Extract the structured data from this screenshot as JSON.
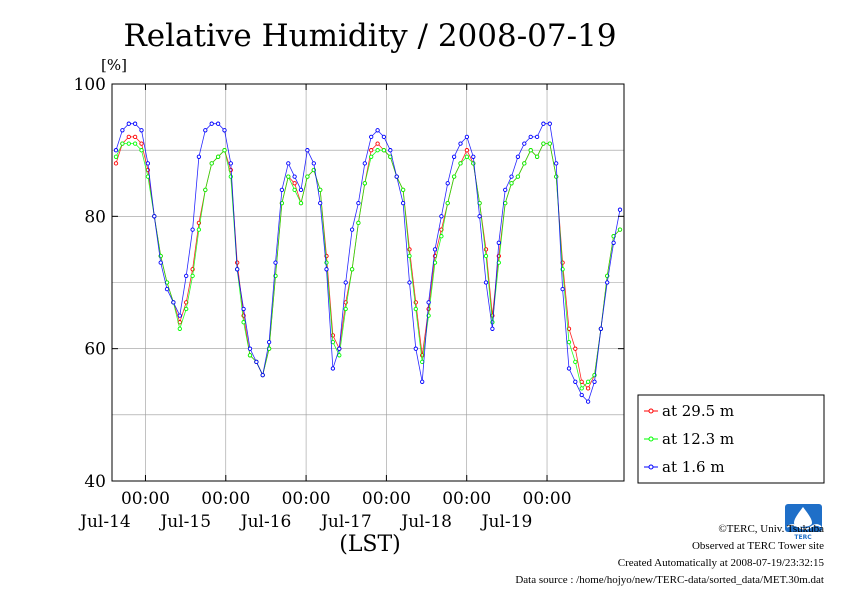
{
  "chart_data": {
    "type": "line",
    "title": "Relative Humidity / 2008-07-19",
    "ylabel": "[%]",
    "xlabel": "(LST)",
    "ylim": [
      40,
      100
    ],
    "yticks": [
      "40",
      "60",
      "80",
      "100"
    ],
    "xlim": [
      "2008-07-13 14:00",
      "2008-07-19 23:00"
    ],
    "xticks": [
      {
        "time": "00:00",
        "date": "Jul-14"
      },
      {
        "time": "00:00",
        "date": "Jul-15"
      },
      {
        "time": "00:00",
        "date": "Jul-16"
      },
      {
        "time": "00:00",
        "date": "Jul-17"
      },
      {
        "time": "00:00",
        "date": "Jul-18"
      },
      {
        "time": "00:00",
        "date": "Jul-19"
      }
    ],
    "grid": true,
    "legend_position": "right",
    "series": [
      {
        "name": "at 29.5 m",
        "color": "#ff0000",
        "values": [
          88,
          91,
          92,
          92,
          91,
          87,
          80,
          74,
          70,
          67,
          64,
          67,
          72,
          79,
          84,
          88,
          89,
          90,
          87,
          73,
          65,
          59,
          58,
          56,
          60,
          71,
          82,
          86,
          85,
          82,
          86,
          87,
          84,
          74,
          62,
          60,
          67,
          72,
          79,
          85,
          90,
          91,
          90,
          89,
          86,
          84,
          75,
          67,
          59,
          66,
          74,
          78,
          82,
          86,
          88,
          90,
          88,
          82,
          75,
          65,
          74,
          82,
          85,
          86,
          88,
          90,
          89,
          91,
          91,
          86,
          73,
          63,
          60,
          55,
          54,
          56,
          63,
          71,
          77,
          78
        ]
      },
      {
        "name": "at 12.3 m",
        "color": "#00ff00",
        "values": [
          89,
          91,
          91,
          91,
          90,
          86,
          80,
          74,
          70,
          67,
          63,
          66,
          71,
          78,
          84,
          88,
          89,
          90,
          86,
          72,
          64,
          59,
          58,
          56,
          60,
          71,
          82,
          86,
          84,
          82,
          86,
          87,
          84,
          73,
          61,
          59,
          66,
          72,
          79,
          85,
          89,
          90,
          90,
          89,
          86,
          84,
          74,
          66,
          58,
          65,
          73,
          77,
          82,
          86,
          88,
          89,
          88,
          82,
          74,
          64,
          73,
          82,
          85,
          86,
          88,
          90,
          89,
          91,
          91,
          86,
          72,
          61,
          58,
          54,
          55,
          56,
          63,
          71,
          77,
          78
        ]
      },
      {
        "name": "at 1.6 m",
        "color": "#0000ff",
        "values": [
          90,
          93,
          94,
          94,
          93,
          88,
          80,
          73,
          69,
          67,
          65,
          71,
          78,
          89,
          93,
          94,
          94,
          93,
          88,
          72,
          66,
          60,
          58,
          56,
          61,
          73,
          84,
          88,
          86,
          84,
          90,
          88,
          82,
          72,
          57,
          60,
          70,
          78,
          82,
          88,
          92,
          93,
          92,
          90,
          86,
          82,
          70,
          60,
          55,
          67,
          75,
          80,
          85,
          89,
          91,
          92,
          89,
          80,
          70,
          63,
          76,
          84,
          86,
          89,
          91,
          92,
          92,
          94,
          94,
          88,
          69,
          57,
          55,
          53,
          52,
          55,
          63,
          70,
          76,
          81
        ]
      }
    ]
  },
  "credits": {
    "copyright": "©TERC, Univ. Tsukuba",
    "site": "Observed at TERC Tower site",
    "created": "Created Automatically at 2008-07-19/23:32:15",
    "source": "Data source : /home/hojyo/new/TERC-data/sorted_data/MET.30m.dat"
  },
  "logo": {
    "text": "TERC",
    "color": "#1f6fc8"
  }
}
